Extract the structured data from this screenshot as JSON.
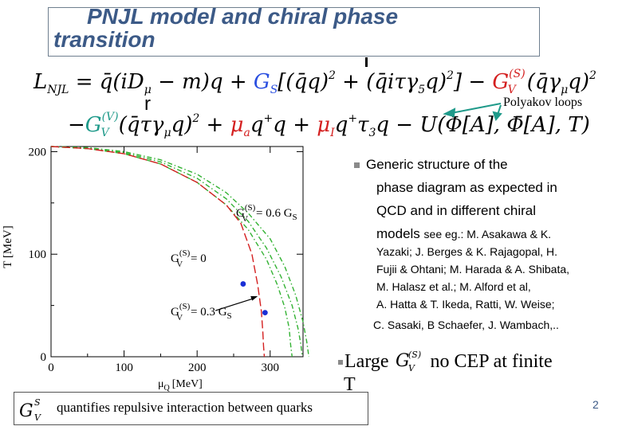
{
  "slide": {
    "title_line1": "PNJL model and chiral phase",
    "title_line2": "transition",
    "equation": {
      "L": "L",
      "L_sub": "NJL",
      "eq_sign": " = ",
      "term1": "q̄(iD",
      "mu": "μ",
      "term1b": " − m)q + ",
      "GS": "G",
      "GS_sub": "S",
      "term2": "[(q̄q)",
      "sq": "2",
      "term3": " + (q̄iτγ",
      "five": "5",
      "term3b": "q)",
      "term3c": "] − ",
      "GV": "G",
      "GV_sup_S": "(S)",
      "GV_sub": "V",
      "term4": "(q̄γ",
      "term4b": "q)",
      "line2_GV_sup_V": "(V)",
      "line2_a": "−",
      "line2_b": "(q̄τγ",
      "line2_c": "q)",
      "line2_d": " + ",
      "mu_a": "μ",
      "a_sub": "a",
      "line2_e": "q",
      "plus": "+",
      "line2_f": "q + ",
      "mu_I": "μ",
      "I_sub": "I",
      "line2_g": "q",
      "line2_h": "τ",
      "three": "3",
      "line2_i": "q − U(Φ[A], Φ̄[A], T)"
    },
    "r_mark": "r",
    "polyakov_label": "Polyakov loops",
    "description": {
      "line1": "Generic structure of the",
      "line2": "phase diagram as expected in",
      "line3": "QCD and  in different chiral",
      "line4a": "models ",
      "line4b": "see eg.: M. Asakawa & K.",
      "refs1": "Yazaki; J. Berges & K. Rajagopal, H.",
      "refs2": "Fujii & Ohtani; M. Harada & A. Shibata,",
      "refs3": "M. Halasz et al.; M. Alford et al,",
      "refs4": "A. Hatta & T. Ikeda, Ratti, W. Weise;",
      "refs5": "C. Sasaki, B Schaefer, J. Wambach,.."
    },
    "large_prefix": "Large ",
    "large_suffix": " no CEP at  finite",
    "large_T": "T",
    "quantifies": "quantifies repulsive interaction  between  quarks",
    "page_number": "2"
  },
  "chart_data": {
    "type": "line",
    "xlabel": "μ",
    "xlabel_sub": "Q",
    "xlabel_unit": "[MeV]",
    "ylabel": "T [MeV]",
    "xlim": [
      0,
      345
    ],
    "ylim": [
      0,
      205
    ],
    "x_ticks": [
      "0",
      "100",
      "200",
      "300"
    ],
    "x_tick_values": [
      0,
      100,
      200,
      300
    ],
    "y_ticks": [
      "0",
      "100",
      "200"
    ],
    "y_tick_values": [
      0,
      100,
      200
    ],
    "annotations": {
      "g06": {
        "G": "G",
        "sup": "(S)",
        "sub": "V",
        "rest": " = 0.6 G",
        "rest_sub": "S"
      },
      "g00": {
        "G": "G",
        "sup": "(S)",
        "sub": "V",
        "rest": " = 0"
      },
      "g03": {
        "G": "G",
        "sup": "(S)",
        "sub": "V",
        "rest": " = 0.3 G",
        "rest_sub": "S"
      }
    },
    "series": [
      {
        "color": "#33b233",
        "style": "dash-dot",
        "x": [
          0,
          50,
          100,
          150,
          200,
          240,
          270,
          295,
          310,
          320,
          326,
          328,
          330
        ],
        "y": [
          205,
          203,
          198,
          188,
          170,
          148,
          124,
          95,
          70,
          48,
          28,
          12,
          0
        ]
      },
      {
        "color": "#33b233",
        "style": "dash-dot",
        "x": [
          0,
          50,
          100,
          150,
          200,
          240,
          270,
          295,
          315,
          330,
          338,
          342,
          344
        ],
        "y": [
          205,
          203,
          199,
          190,
          174,
          154,
          132,
          106,
          78,
          50,
          28,
          12,
          0
        ]
      },
      {
        "color": "#33b233",
        "style": "dash-dot",
        "x": [
          0,
          50,
          100,
          150,
          200,
          240,
          270,
          300,
          320,
          335,
          345,
          350,
          353
        ],
        "y": [
          205,
          204,
          200,
          192,
          178,
          160,
          140,
          115,
          88,
          60,
          34,
          15,
          0
        ]
      },
      {
        "color": "#d42020",
        "style": "dashed",
        "x": [
          0,
          50,
          100,
          150,
          200,
          240,
          260,
          275,
          283,
          288,
          290,
          291,
          292
        ],
        "y": [
          205,
          203,
          198,
          188,
          170,
          148,
          130,
          100,
          70,
          44,
          24,
          10,
          0
        ]
      }
    ],
    "points": [
      {
        "x": 263,
        "y": 71,
        "color": "#1a2fd6"
      },
      {
        "x": 293,
        "y": 43,
        "color": "#1a2fd6"
      }
    ],
    "arrow": {
      "from": [
        225,
        45
      ],
      "to": [
        283,
        59
      ]
    }
  },
  "colors": {
    "title": "#3c5a87",
    "blue": "#2a4fe0",
    "red": "#d42020",
    "green": "#33b233",
    "teal": "#1f9a8a",
    "bullet": "#8a8a8a"
  }
}
